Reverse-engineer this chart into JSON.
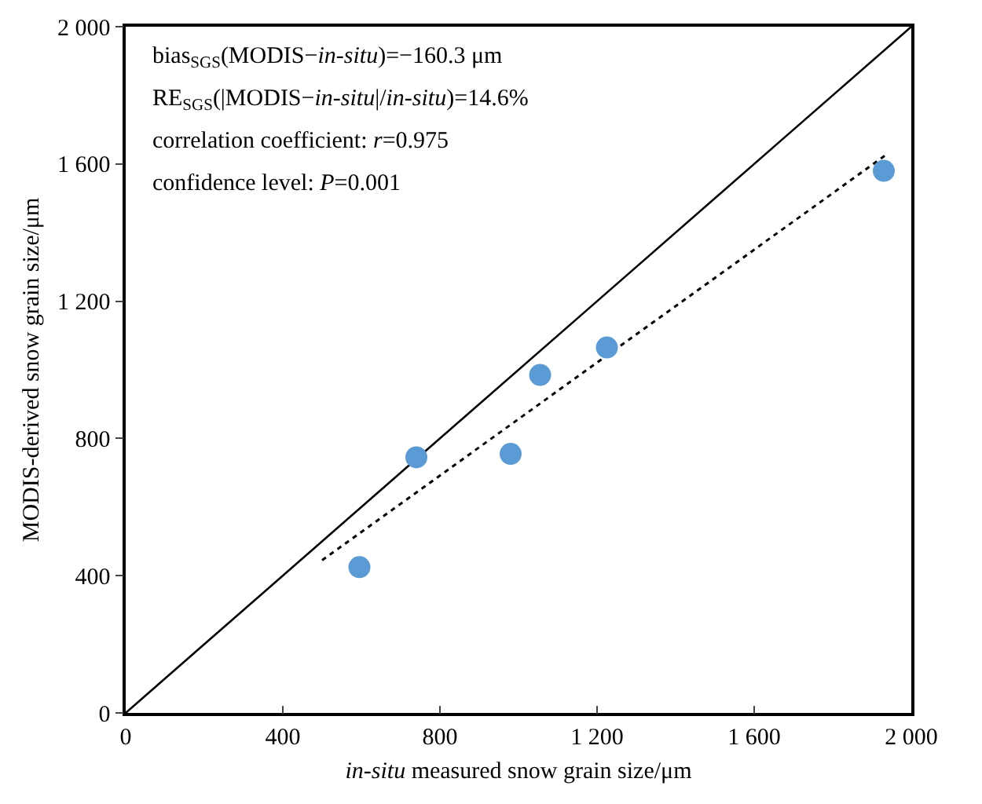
{
  "chart_data": {
    "type": "scatter",
    "xlabel": "in-situ measured snow grain size/μm",
    "ylabel": "MODIS-derived snow grain size/μm",
    "xlim": [
      0,
      2000
    ],
    "ylim": [
      0,
      2000
    ],
    "xticks": [
      0,
      {
        "value": 400,
        "label": "400"
      },
      {
        "value": 800,
        "label": "800"
      },
      {
        "value": 1200,
        "label": "1 200"
      },
      {
        "value": 1600,
        "label": "1 600"
      },
      {
        "value": 2000,
        "label": "2 000"
      }
    ],
    "yticks": [
      0,
      {
        "value": 400,
        "label": "400"
      },
      {
        "value": 800,
        "label": "800"
      },
      {
        "value": 1200,
        "label": "1 200"
      },
      {
        "value": 1600,
        "label": "1 600"
      },
      {
        "value": 2000,
        "label": "2 000"
      }
    ],
    "grid": false,
    "marker": "circle",
    "series": [
      {
        "type": "scatter",
        "color": "#5b9bd5",
        "x": [
          595,
          740,
          980,
          1055,
          1225,
          1930
        ],
        "values": [
          425,
          745,
          755,
          985,
          1065,
          1580
        ]
      },
      {
        "type": "line",
        "color": "#000000",
        "line_style": "solid",
        "marker": "none",
        "x": [
          0,
          2000
        ],
        "values": [
          0,
          2000
        ]
      },
      {
        "type": "line",
        "color": "#000000",
        "line_style": "dotted",
        "marker": "none",
        "x": [
          500,
          1940
        ],
        "values": [
          445,
          1630
        ]
      }
    ],
    "annotations": [
      "bias$_{SGS}$(MODIS−in-situ)=−160.3 μm",
      "RE$_{SGS}$(|MODIS−in-situ|/in-situ)=14.6%",
      "correlation coefficient: r=0.975",
      "confidence level: P=0.001"
    ]
  }
}
